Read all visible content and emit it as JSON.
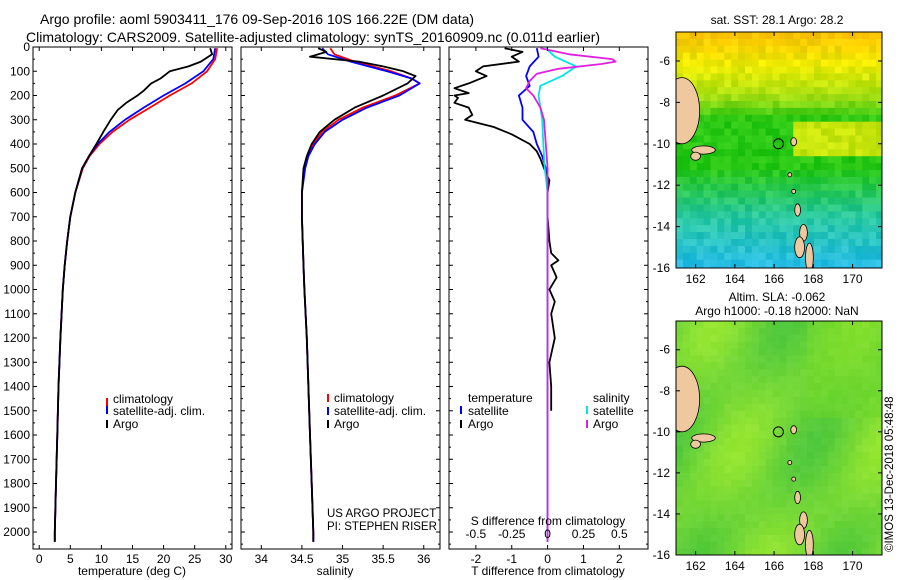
{
  "header": {
    "line1": "Argo profile: aoml 5903411_176 09-Sep-2016 10S 166.22E (DM data)",
    "line2": "Climatology: CARS2009. Satellite-adjusted climatology: synTS_20160909.nc (0.011d earlier)"
  },
  "colors": {
    "climatology": "#ff0000",
    "satellite": "#0000ff",
    "argo": "#000000",
    "salinity_satellite": "#00e5e5",
    "salinity_argo": "#e020e0"
  },
  "chart_data": [
    {
      "type": "line",
      "panel": "temperature",
      "xlabel": "temperature (deg C)",
      "ylabel": "",
      "xlim": [
        -1,
        31
      ],
      "ylim": [
        2070,
        0
      ],
      "xticks": [
        0,
        5,
        10,
        15,
        20,
        25,
        30
      ],
      "yticks": [
        0,
        100,
        200,
        300,
        400,
        500,
        600,
        700,
        800,
        900,
        1000,
        1100,
        1200,
        1300,
        1400,
        1500,
        1600,
        1700,
        1800,
        1900,
        2000
      ],
      "legend": [
        "climatology",
        "satellite-adj. clim.",
        "Argo"
      ],
      "series": [
        {
          "name": "climatology",
          "color": "#ff0000",
          "y": [
            5,
            50,
            100,
            150,
            200,
            250,
            300,
            350,
            400,
            450,
            500,
            600,
            700,
            800,
            900,
            1000,
            1200,
            1400,
            1600,
            1800,
            2000,
            2040
          ],
          "x": [
            28.6,
            28.3,
            27.0,
            24.5,
            21.0,
            17.8,
            14.5,
            11.8,
            9.7,
            8.1,
            7.0,
            5.8,
            5.0,
            4.5,
            4.1,
            3.8,
            3.4,
            3.1,
            2.9,
            2.7,
            2.5,
            2.5
          ]
        },
        {
          "name": "satellite-adj. clim.",
          "color": "#0000ff",
          "y": [
            5,
            50,
            100,
            150,
            200,
            250,
            300,
            350,
            400,
            450,
            500,
            600,
            700,
            800,
            900,
            1000,
            1200,
            1400,
            1600,
            1800,
            2000,
            2040
          ],
          "x": [
            28.3,
            28.0,
            26.4,
            23.5,
            20.0,
            16.8,
            13.8,
            11.3,
            9.4,
            8.0,
            6.9,
            5.8,
            5.0,
            4.5,
            4.1,
            3.8,
            3.4,
            3.1,
            2.9,
            2.7,
            2.5,
            2.5
          ]
        },
        {
          "name": "Argo",
          "color": "#000000",
          "y": [
            5,
            30,
            60,
            80,
            100,
            130,
            150,
            180,
            200,
            230,
            260,
            300,
            350,
            400,
            450,
            500,
            600,
            700,
            800,
            900,
            1000,
            1200,
            1400,
            1600,
            1800,
            2000,
            2040
          ],
          "x": [
            27.5,
            27.8,
            26.0,
            24.0,
            21.0,
            19.5,
            18.0,
            16.8,
            15.8,
            14.0,
            12.6,
            11.5,
            10.3,
            9.2,
            8.0,
            6.9,
            5.8,
            5.0,
            4.5,
            4.1,
            3.8,
            3.4,
            3.1,
            2.9,
            2.7,
            2.5,
            2.5
          ]
        }
      ]
    },
    {
      "type": "line",
      "panel": "salinity",
      "xlabel": "salinity",
      "ylabel": "",
      "xlim": [
        33.75,
        36.2
      ],
      "ylim": [
        2070,
        0
      ],
      "xticks": [
        34,
        34.5,
        35,
        35.5,
        36
      ],
      "legend": [
        "climatology",
        "satellite-adj. clim.",
        "Argo"
      ],
      "annotation": [
        "US ARGO PROJECT",
        "PI: STEPHEN RISER"
      ],
      "series": [
        {
          "name": "climatology",
          "color": "#ff0000",
          "y": [
            5,
            30,
            60,
            100,
            130,
            150,
            200,
            250,
            300,
            350,
            400,
            450,
            500,
            600,
            700,
            800,
            900,
            1000,
            1200,
            1400,
            1600,
            1800,
            2000,
            2040
          ],
          "x": [
            34.85,
            34.9,
            35.15,
            35.6,
            35.85,
            35.95,
            35.65,
            35.25,
            34.95,
            34.75,
            34.64,
            34.57,
            34.53,
            34.5,
            34.5,
            34.51,
            34.52,
            34.53,
            34.56,
            34.58,
            34.6,
            34.62,
            34.64,
            34.64
          ]
        },
        {
          "name": "satellite-adj. clim.",
          "color": "#0000ff",
          "y": [
            5,
            30,
            60,
            100,
            130,
            150,
            200,
            250,
            300,
            350,
            400,
            450,
            500,
            600,
            700,
            800,
            900,
            1000,
            1200,
            1400,
            1600,
            1800,
            2000,
            2040
          ],
          "x": [
            34.75,
            34.82,
            35.1,
            35.55,
            35.85,
            35.95,
            35.7,
            35.3,
            35.0,
            34.78,
            34.66,
            34.58,
            34.54,
            34.5,
            34.5,
            34.51,
            34.52,
            34.53,
            34.56,
            34.58,
            34.6,
            34.62,
            34.64,
            34.64
          ]
        },
        {
          "name": "Argo",
          "color": "#000000",
          "y": [
            5,
            20,
            40,
            60,
            80,
            100,
            120,
            150,
            200,
            250,
            300,
            350,
            400,
            450,
            500,
            600,
            700,
            800,
            900,
            1000,
            1200,
            1400,
            1600,
            1800,
            2000,
            2040
          ],
          "x": [
            34.7,
            34.8,
            34.6,
            35.2,
            35.5,
            35.75,
            35.9,
            35.8,
            35.5,
            35.15,
            34.9,
            34.72,
            34.62,
            34.56,
            34.52,
            34.5,
            34.5,
            34.51,
            34.52,
            34.53,
            34.56,
            34.58,
            34.6,
            34.62,
            34.64,
            34.64
          ]
        }
      ]
    },
    {
      "type": "line",
      "panel": "difference",
      "xlabel": "T difference from climatology",
      "xlabel_top": "S difference from climatology",
      "ylabel": "",
      "xlim": [
        -2.75,
        2.8
      ],
      "ylim": [
        2070,
        0
      ],
      "xticks": [
        -2,
        -1,
        0,
        1,
        2
      ],
      "sticks": [
        "-0.5",
        "-0.25",
        "0",
        "0.25",
        "0.5"
      ],
      "legend_left_title": "temperature",
      "legend_right_title": "salinity",
      "legend_left": [
        "satellite",
        "Argo"
      ],
      "legend_right": [
        "satellite",
        "Argo"
      ],
      "series": [
        {
          "name": "temperature satellite",
          "color": "#0000ff",
          "y": [
            5,
            40,
            80,
            120,
            160,
            200,
            250,
            300,
            350,
            400,
            450,
            500,
            600,
            2040
          ],
          "x": [
            -0.3,
            -0.25,
            -0.5,
            -0.6,
            -0.5,
            -0.8,
            -0.7,
            -0.7,
            -0.4,
            -0.3,
            -0.15,
            -0.05,
            0,
            0
          ]
        },
        {
          "name": "temperature Argo",
          "color": "#000000",
          "y": [
            5,
            20,
            40,
            60,
            80,
            100,
            120,
            150,
            170,
            190,
            200,
            210,
            230,
            250,
            280,
            300,
            330,
            360,
            400,
            430,
            460,
            500,
            550,
            600,
            700,
            800,
            850,
            880,
            900,
            950,
            1000,
            1050,
            1100,
            1200,
            1300,
            1400,
            1500
          ],
          "x": [
            -1.2,
            -0.7,
            -1.0,
            -0.8,
            -1.8,
            -2.0,
            -1.7,
            -2.2,
            -2.6,
            -2.2,
            -2.6,
            -2.5,
            -2.6,
            -2.2,
            -2.1,
            -2.3,
            -1.5,
            -1.0,
            -0.5,
            -0.3,
            -0.2,
            -0.1,
            0.05,
            0,
            0,
            0.05,
            0.1,
            0.3,
            0.1,
            0.25,
            0.05,
            0.2,
            0.1,
            0.2,
            0.05,
            0.1,
            0.1
          ]
        },
        {
          "name": "salinity satellite",
          "color": "#00e5e5",
          "y": [
            5,
            40,
            80,
            120,
            160,
            200,
            250,
            300,
            400,
            500,
            600,
            800,
            1000,
            1400,
            2040
          ],
          "x": [
            -0.05,
            0.2,
            0.8,
            0.4,
            -0.2,
            -0.25,
            -0.2,
            -0.15,
            -0.12,
            -0.08,
            0,
            0,
            0,
            0,
            0
          ]
        },
        {
          "name": "salinity Argo",
          "color": "#e020e0",
          "y": [
            5,
            30,
            50,
            60,
            70,
            90,
            110,
            140,
            170,
            200,
            250,
            300,
            400,
            500,
            600,
            2040
          ],
          "x": [
            -0.2,
            0.6,
            1.8,
            1.9,
            1.5,
            0.3,
            -0.3,
            -0.5,
            -0.6,
            -0.4,
            -0.2,
            -0.1,
            -0.05,
            0,
            0,
            0
          ]
        }
      ]
    },
    {
      "type": "heatmap",
      "panel": "sst-map",
      "title": "sat. SST: 28.1 Argo: 28.2",
      "xticks": [
        162,
        164,
        166,
        168,
        170
      ],
      "yticks": [
        -6,
        -8,
        -10,
        -12,
        -14,
        -16
      ],
      "xlim": [
        161,
        171.5
      ],
      "ylim": [
        -16,
        -4.6
      ],
      "marker": {
        "lon": 166.22,
        "lat": -10
      }
    },
    {
      "type": "heatmap",
      "panel": "sla-map",
      "title_line1": "Altim. SLA: -0.062",
      "title_line2": "Argo h1000: -0.18 h2000: NaN",
      "xticks": [
        162,
        164,
        166,
        168,
        170
      ],
      "yticks": [
        -6,
        -8,
        -10,
        -12,
        -14,
        -16
      ],
      "xlim": [
        161,
        171.5
      ],
      "ylim": [
        -16,
        -4.6
      ],
      "marker": {
        "lon": 166.22,
        "lat": -10
      }
    }
  ],
  "credit": "©IMOS 13-Dec-2018 05:48:48"
}
